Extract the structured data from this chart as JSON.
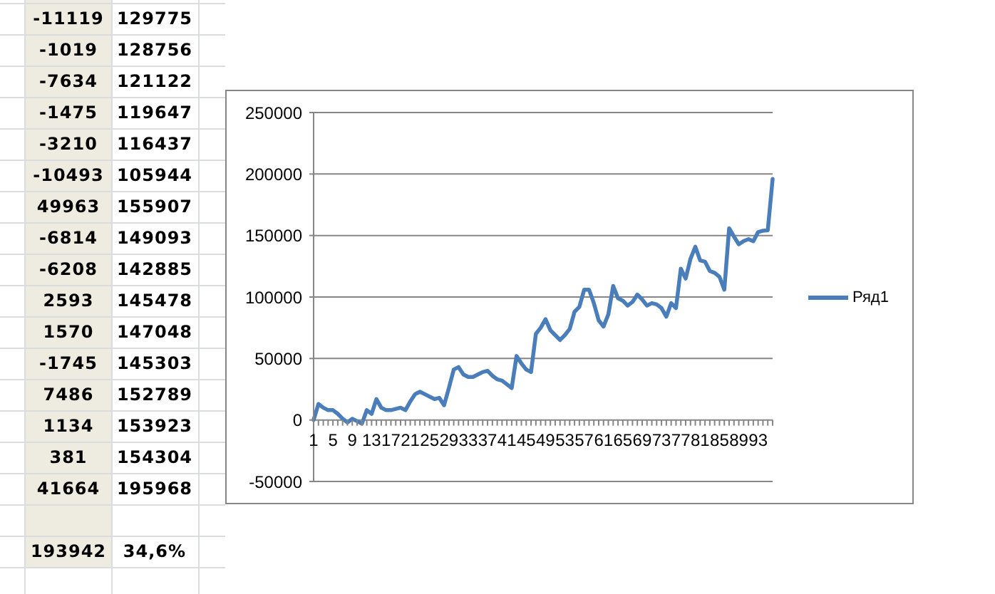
{
  "chart_data": {
    "type": "line",
    "categories": [
      "1",
      null,
      null,
      null,
      "5",
      null,
      null,
      null,
      "9",
      null,
      null,
      null,
      "13",
      null,
      null,
      null,
      "17",
      null,
      null,
      null,
      "21",
      null,
      null,
      null,
      "25",
      null,
      null,
      null,
      "29",
      null,
      null,
      null,
      "33",
      null,
      null,
      null,
      "37",
      null,
      null,
      null,
      "41",
      null,
      null,
      null,
      "45",
      null,
      null,
      null,
      "49",
      null,
      null,
      null,
      "53",
      null,
      null,
      null,
      "57",
      null,
      null,
      null,
      "61",
      null,
      null,
      null,
      "65",
      null,
      null,
      null,
      "69",
      null,
      null,
      null,
      "73",
      null,
      null,
      null,
      "77",
      null,
      null,
      null,
      "81",
      null,
      null,
      null,
      "85",
      null,
      null,
      null,
      "89",
      null,
      null,
      null,
      "93",
      null,
      null,
      null
    ],
    "series": [
      {
        "name": "Ряд1",
        "color": "#4a7ebb",
        "values": [
          0,
          13000,
          10000,
          8000,
          8000,
          5000,
          1000,
          -2000,
          1000,
          -1000,
          -3000,
          8000,
          5000,
          17000,
          10000,
          8000,
          8000,
          9000,
          10000,
          8000,
          15000,
          21000,
          23000,
          21000,
          19000,
          17000,
          18000,
          12000,
          26000,
          41000,
          43000,
          37000,
          35000,
          35000,
          37000,
          39000,
          40000,
          36000,
          33000,
          32000,
          29000,
          26000,
          52000,
          46000,
          41000,
          39000,
          70000,
          75000,
          82000,
          73000,
          69000,
          65000,
          69000,
          74000,
          88000,
          92000,
          106000,
          106000,
          95000,
          81000,
          76000,
          86000,
          109000,
          99000,
          97000,
          93000,
          96000,
          102000,
          98000,
          93000,
          95000,
          94000,
          91000,
          84000,
          95000,
          91000,
          123000,
          115000,
          131000,
          140894,
          129775,
          128756,
          121122,
          119647,
          116437,
          105944,
          155907,
          149093,
          142885,
          145478,
          147048,
          145303,
          152789,
          153923,
          154304,
          195968
        ]
      }
    ],
    "ylim": [
      -50000,
      250000
    ],
    "yticks": [
      -50000,
      0,
      50000,
      100000,
      150000,
      200000,
      250000
    ],
    "grid": "y",
    "legend": "right",
    "annotations": [
      "-11119",
      "129775",
      "-1019",
      "128756",
      "-7634",
      "121122",
      "-1475",
      "119647",
      "-3210",
      "116437",
      "-10493",
      "105944",
      "49963",
      "155907",
      "-6814",
      "149093",
      "-6208",
      "142885",
      "2593",
      "145478",
      "1570",
      "147048",
      "-1745",
      "145303",
      "7486",
      "152789",
      "1134",
      "153923",
      "381",
      "154304",
      "41664",
      "195968",
      "193942",
      "34,6%"
    ]
  }
}
